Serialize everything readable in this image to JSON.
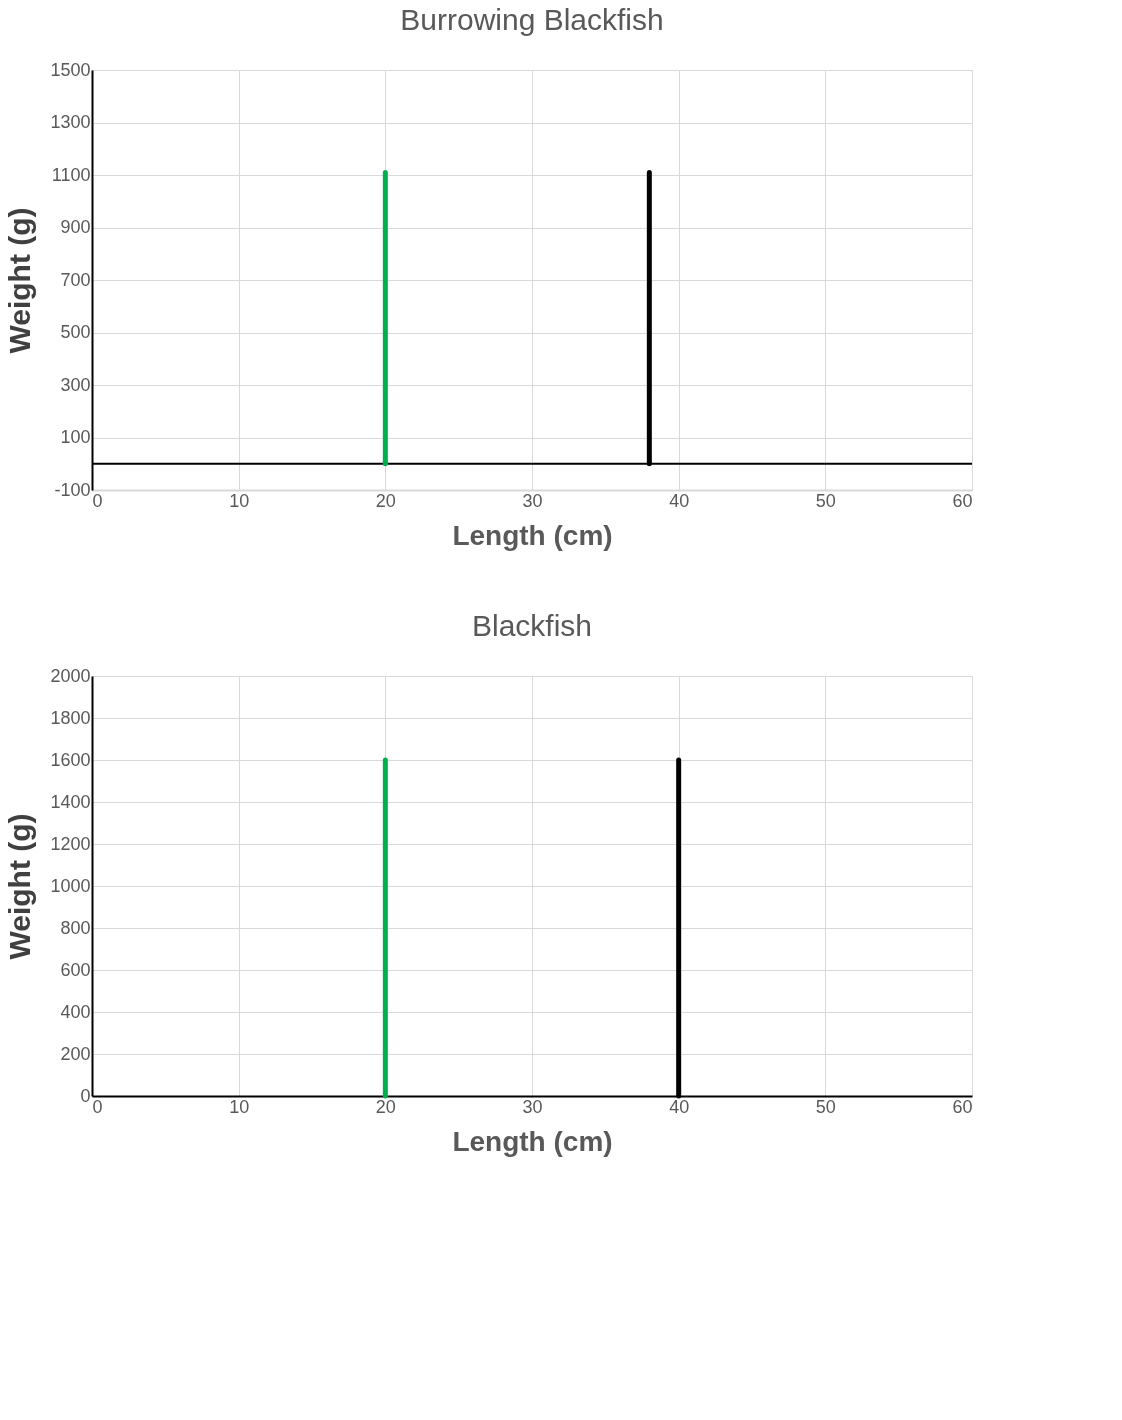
{
  "chart_data": [
    {
      "type": "line",
      "title": "Burrowing Blackfish",
      "xlabel": "Length (cm)",
      "ylabel": "Weight (g)",
      "xlim": [
        0,
        60
      ],
      "xticks": [
        0,
        10,
        20,
        30,
        40,
        50,
        60
      ],
      "ylim": [
        -100,
        1500
      ],
      "yticks": [
        -100,
        100,
        300,
        500,
        700,
        900,
        1100,
        1300,
        1500
      ],
      "grid": true,
      "marker": "none",
      "line_style": "solid",
      "series": [
        {
          "color": "#00b050",
          "x": [
            20,
            20
          ],
          "values": [
            0,
            1110
          ]
        },
        {
          "color": "#000000",
          "x": [
            38,
            38
          ],
          "values": [
            0,
            1110
          ]
        }
      ],
      "ref_lines": [
        {
          "axis": "y",
          "value": 0,
          "color": "#000000"
        }
      ]
    },
    {
      "type": "line",
      "title": "Blackfish",
      "xlabel": "Length (cm)",
      "ylabel": "Weight (g)",
      "xlim": [
        0,
        60
      ],
      "xticks": [
        0,
        10,
        20,
        30,
        40,
        50,
        60
      ],
      "ylim": [
        0,
        2000
      ],
      "yticks": [
        0,
        200,
        400,
        600,
        800,
        1000,
        1200,
        1400,
        1600,
        1800,
        2000
      ],
      "grid": true,
      "marker": "none",
      "line_style": "solid",
      "series": [
        {
          "color": "#00b050",
          "x": [
            20,
            20
          ],
          "values": [
            0,
            1600
          ]
        },
        {
          "color": "#000000",
          "x": [
            40,
            40
          ],
          "values": [
            0,
            1600
          ]
        }
      ]
    }
  ]
}
